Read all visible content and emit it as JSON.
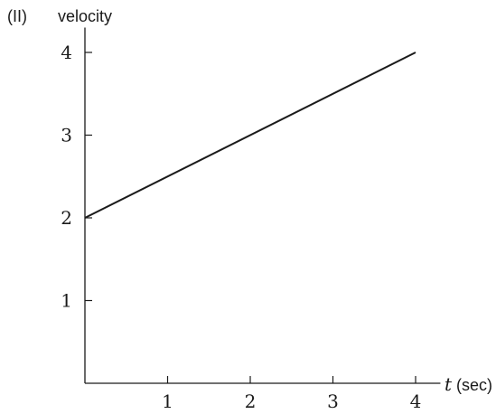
{
  "figure": {
    "panel_label": "(II)"
  },
  "chart_data": {
    "type": "line",
    "ylabel": "velocity",
    "xlabel_var": "t",
    "xlabel_unit": "(sec)",
    "xlim": [
      0,
      4.3
    ],
    "ylim": [
      0,
      4.3
    ],
    "x_ticks": [
      1,
      2,
      3,
      4
    ],
    "y_ticks": [
      1,
      2,
      3,
      4
    ],
    "grid": false,
    "series": [
      {
        "x": [
          0,
          4
        ],
        "y": [
          2,
          4
        ]
      }
    ],
    "colors": {
      "line": "#1a1a1a",
      "axis": "#1a1a1a"
    }
  }
}
